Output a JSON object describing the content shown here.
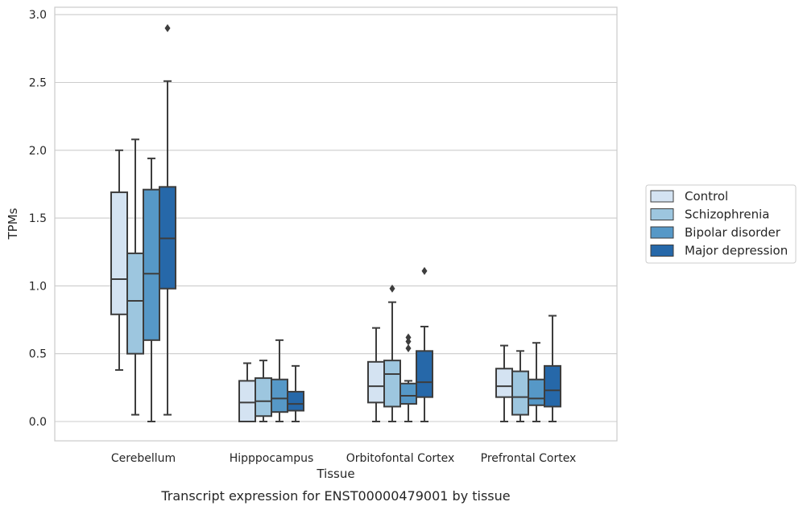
{
  "chart_data": {
    "type": "box",
    "caption": "Transcript expression for ENST00000479001 by tissue",
    "xlabel": "Tissue",
    "ylabel": "TPMs",
    "categories": [
      "Cerebellum",
      "Hipppocampus",
      "Orbitofontal Cortex",
      "Prefrontal Cortex"
    ],
    "ylim": [
      -0.14,
      3.05
    ],
    "yticks": [
      "0.0",
      "0.5",
      "1.0",
      "1.5",
      "2.0",
      "2.5",
      "3.0"
    ],
    "grid": true,
    "legend_position": "right",
    "series": [
      {
        "name": "Control",
        "color": "#d4e3f2",
        "boxes": [
          {
            "whislo": 0.38,
            "q1": 0.79,
            "med": 1.05,
            "q3": 1.69,
            "whishi": 2.0,
            "fliers": []
          },
          {
            "whislo": 0.0,
            "q1": 0.0,
            "med": 0.14,
            "q3": 0.3,
            "whishi": 0.43,
            "fliers": []
          },
          {
            "whislo": 0.0,
            "q1": 0.14,
            "med": 0.26,
            "q3": 0.44,
            "whishi": 0.69,
            "fliers": []
          },
          {
            "whislo": 0.0,
            "q1": 0.18,
            "med": 0.26,
            "q3": 0.39,
            "whishi": 0.56,
            "fliers": []
          }
        ]
      },
      {
        "name": "Schizophrenia",
        "color": "#9dc6df",
        "boxes": [
          {
            "whislo": 0.05,
            "q1": 0.5,
            "med": 0.89,
            "q3": 1.24,
            "whishi": 2.08,
            "fliers": []
          },
          {
            "whislo": 0.0,
            "q1": 0.04,
            "med": 0.15,
            "q3": 0.32,
            "whishi": 0.45,
            "fliers": []
          },
          {
            "whislo": 0.0,
            "q1": 0.11,
            "med": 0.35,
            "q3": 0.45,
            "whishi": 0.88,
            "fliers": [
              0.98
            ]
          },
          {
            "whislo": 0.0,
            "q1": 0.05,
            "med": 0.18,
            "q3": 0.37,
            "whishi": 0.52,
            "fliers": []
          }
        ]
      },
      {
        "name": "Bipolar disorder",
        "color": "#5698c7",
        "boxes": [
          {
            "whislo": 0.0,
            "q1": 0.6,
            "med": 1.09,
            "q3": 1.71,
            "whishi": 1.94,
            "fliers": []
          },
          {
            "whislo": 0.0,
            "q1": 0.07,
            "med": 0.17,
            "q3": 0.31,
            "whishi": 0.6,
            "fliers": []
          },
          {
            "whislo": 0.0,
            "q1": 0.13,
            "med": 0.19,
            "q3": 0.28,
            "whishi": 0.3,
            "fliers": [
              0.54,
              0.59,
              0.62
            ]
          },
          {
            "whislo": 0.0,
            "q1": 0.12,
            "med": 0.17,
            "q3": 0.31,
            "whishi": 0.58,
            "fliers": []
          }
        ]
      },
      {
        "name": "Major depression",
        "color": "#2668a9",
        "boxes": [
          {
            "whislo": 0.05,
            "q1": 0.98,
            "med": 1.35,
            "q3": 1.73,
            "whishi": 2.51,
            "fliers": [
              2.9
            ]
          },
          {
            "whislo": 0.0,
            "q1": 0.08,
            "med": 0.13,
            "q3": 0.22,
            "whishi": 0.41,
            "fliers": []
          },
          {
            "whislo": 0.0,
            "q1": 0.18,
            "med": 0.29,
            "q3": 0.52,
            "whishi": 0.7,
            "fliers": [
              1.11
            ]
          },
          {
            "whislo": 0.0,
            "q1": 0.11,
            "med": 0.23,
            "q3": 0.41,
            "whishi": 0.78,
            "fliers": []
          }
        ]
      }
    ]
  }
}
